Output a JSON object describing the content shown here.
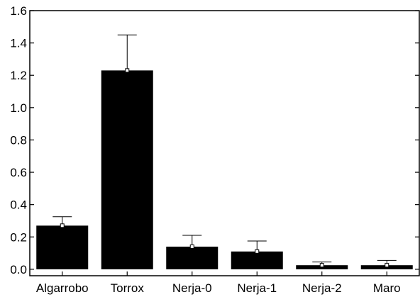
{
  "chart_data": {
    "type": "bar",
    "title": "",
    "xlabel": "",
    "ylabel": "",
    "categories": [
      "Algarrobo",
      "Torrox",
      "Nerja-0",
      "Nerja-1",
      "Nerja-2",
      "Maro"
    ],
    "values": [
      0.27,
      1.23,
      0.14,
      0.11,
      0.025,
      0.025
    ],
    "errors": [
      0.055,
      0.22,
      0.07,
      0.065,
      0.02,
      0.03
    ],
    "ylim": [
      -0.04,
      1.6
    ],
    "yticks": [
      0.0,
      0.2,
      0.4,
      0.6,
      0.8,
      1.0,
      1.2,
      1.4,
      1.6
    ],
    "ytick_labels": [
      "0.0",
      "0.2",
      "0.4",
      "0.6",
      "0.8",
      "1.0",
      "1.2",
      "1.4",
      "1.6"
    ],
    "grid": false,
    "legend": "none",
    "bar_color": "#000000",
    "marker": "open-square"
  }
}
